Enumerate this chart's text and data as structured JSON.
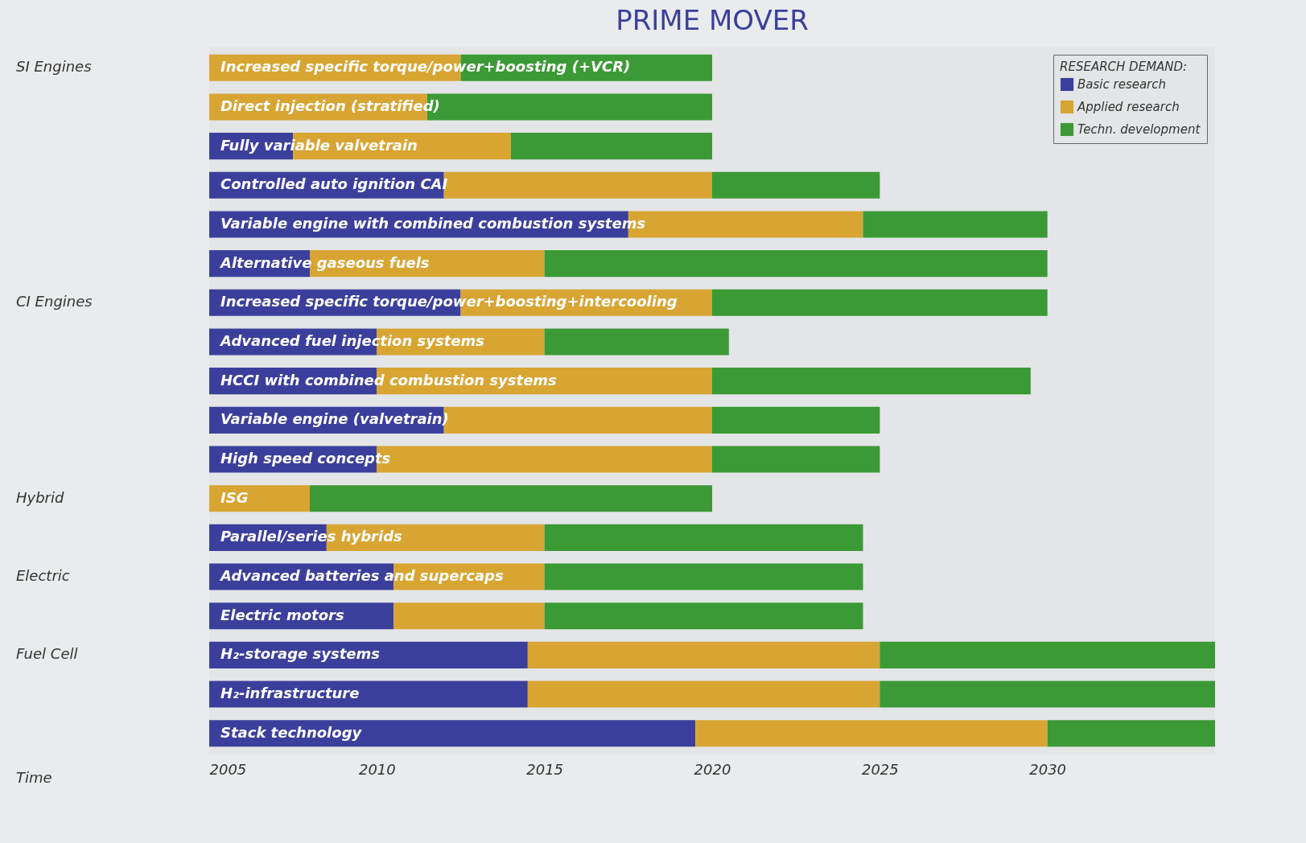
{
  "chart_data": {
    "type": "bar",
    "orientation": "horizontal",
    "title": "PRIME MOVER",
    "legend_title": "RESEARCH DEMAND:",
    "legend": "top right",
    "categories": [
      "Increased specific torque/power+boosting (+VCR)",
      "Direct injection (stratified)",
      "Fully variable valvetrain",
      "Controlled auto ignition CAI",
      "Variable engine with combined combustion systems",
      "Alternative gaseous fuels",
      "Increased specific torque/power+boosting+intercooling",
      "Advanced fuel injection systems",
      "HCCI with combined combustion systems",
      "Variable engine (valvetrain)",
      "High speed concepts",
      "ISG",
      "Parallel/series hybrids",
      "Advanced batteries and supercaps",
      "Electric motors",
      "H₂-storage systems",
      "H₂-infrastructure",
      "Stack technology"
    ],
    "series": [
      {
        "name": "Basic research",
        "color": "#3b3f9c",
        "values": [
          null,
          null,
          2.5,
          7,
          12.5,
          3,
          7.5,
          5,
          5,
          7,
          5,
          null,
          3.5,
          5.5,
          5.5,
          9.5,
          9.5,
          14.5
        ],
        "base": [
          null,
          null,
          2005,
          2005,
          2005,
          2005,
          2005,
          2005,
          2005,
          2005,
          2005,
          null,
          2005,
          2005,
          2005,
          2005,
          2005,
          2005
        ]
      },
      {
        "name": "Applied research",
        "color": "#d8a533",
        "values": [
          7.5,
          6.5,
          6.5,
          8,
          7,
          7,
          7.5,
          5,
          10,
          8,
          10,
          3,
          6.5,
          4.5,
          4.5,
          10.5,
          10.5,
          10.5
        ],
        "base": [
          2005,
          2005,
          2007.5,
          2012,
          2017.5,
          2008,
          2012.5,
          2010,
          2010,
          2012,
          2010,
          2005,
          2008.5,
          2010.5,
          2010.5,
          2014.5,
          2014.5,
          2019.5
        ]
      },
      {
        "name": "Techn. development",
        "color": "#3b9a35",
        "values": [
          7.5,
          8.5,
          6,
          5,
          5.5,
          15,
          10,
          5.5,
          9.5,
          5,
          5,
          12,
          9.5,
          9.5,
          9.5,
          10,
          10,
          5
        ],
        "base": [
          2012.5,
          2011.5,
          2014,
          2020,
          2024.5,
          2015,
          2020,
          2015,
          2020,
          2020,
          2020,
          2008,
          2015,
          2015,
          2015,
          2025,
          2025,
          2030
        ]
      }
    ],
    "xlim": [
      2005,
      2035
    ],
    "xticks": [
      2005,
      2010,
      2015,
      2020,
      2025,
      2030
    ],
    "annotations": [
      "SI Engines",
      "CI Engines",
      "Hybrid",
      "Electric",
      "Fuel Cell",
      "Time"
    ]
  }
}
